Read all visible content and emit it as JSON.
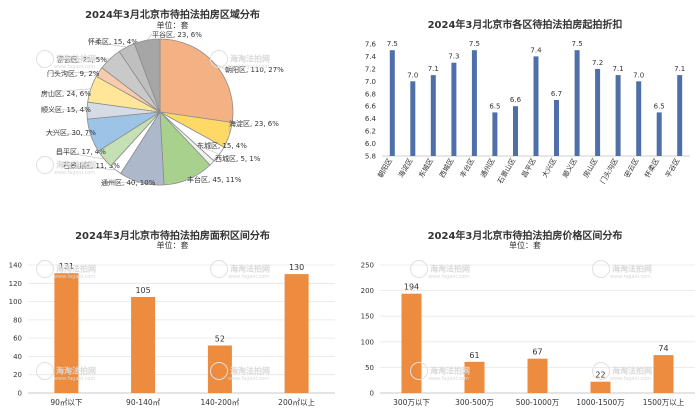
{
  "watermark": {
    "name": "海淘法拍网",
    "url": "www.fagaol.com"
  },
  "chart_data": [
    {
      "id": "district_pie",
      "type": "pie",
      "title": "2024年3月北京市待拍法拍房区域分布",
      "subtitle": "单位：套",
      "slices": [
        {
          "name": "朝阳区",
          "value": 110,
          "pct": "27%",
          "color": "#f4b183"
        },
        {
          "name": "海淀区",
          "value": 23,
          "pct": "6%",
          "color": "#ffd966"
        },
        {
          "name": "东城区",
          "value": 15,
          "pct": "4%",
          "color": "#ffffff"
        },
        {
          "name": "西城区",
          "value": 5,
          "pct": "1%",
          "color": "#f2f2f2"
        },
        {
          "name": "丰台区",
          "value": 45,
          "pct": "11%",
          "color": "#a9d18e"
        },
        {
          "name": "通州区",
          "value": 40,
          "pct": "10%",
          "color": "#adb9ca"
        },
        {
          "name": "石景山区",
          "value": 11,
          "pct": "3%",
          "color": "#ffffff"
        },
        {
          "name": "昌平区",
          "value": 17,
          "pct": "4%",
          "color": "#c5e0b4"
        },
        {
          "name": "大兴区",
          "value": 30,
          "pct": "7%",
          "color": "#9dc3e6"
        },
        {
          "name": "顺义区",
          "value": 15,
          "pct": "4%",
          "color": "#d6dce5"
        },
        {
          "name": "房山区",
          "value": 24,
          "pct": "6%",
          "color": "#ffe699"
        },
        {
          "name": "门头沟区",
          "value": 9,
          "pct": "2%",
          "color": "#f8cbad"
        },
        {
          "name": "密云区",
          "value": 21,
          "pct": "5%",
          "color": "#c9c9c9"
        },
        {
          "name": "怀柔区",
          "value": 15,
          "pct": "4%",
          "color": "#bfbfbf"
        },
        {
          "name": "平谷区",
          "value": 23,
          "pct": "6%",
          "color": "#a6a6a6"
        }
      ]
    },
    {
      "id": "discount_bar",
      "type": "bar",
      "title": "2024年3月北京市各区待拍法拍房起拍折扣",
      "categories": [
        "朝阳区",
        "海淀区",
        "东城区",
        "西城区",
        "丰台区",
        "通州区",
        "石景山区",
        "昌平区",
        "大兴区",
        "顺义区",
        "房山区",
        "门头沟区",
        "密云区",
        "怀柔区",
        "平谷区"
      ],
      "values": [
        7.5,
        7.0,
        7.1,
        7.3,
        7.5,
        6.5,
        6.6,
        7.4,
        6.7,
        7.5,
        7.2,
        7.1,
        7.0,
        6.5,
        7.1
      ],
      "ylim": [
        5.8,
        7.6
      ],
      "yticks": [
        "7.6",
        "7.4",
        "7.2",
        "7.0",
        "6.8",
        "6.6",
        "6.4",
        "6.2",
        "6.0",
        "5.8"
      ],
      "color": "#4f6fa8"
    },
    {
      "id": "area_bar",
      "type": "bar",
      "title": "2024年3月北京市待拍法拍房面积区间分布",
      "subtitle": "单位：套",
      "categories": [
        "90㎡以下",
        "90-140㎡",
        "140-200㎡",
        "200㎡以上"
      ],
      "values": [
        131,
        105,
        52,
        130
      ],
      "ylim": [
        0,
        140
      ],
      "yticks": [
        "140",
        "120",
        "100",
        "80",
        "60",
        "40",
        "20",
        "0"
      ],
      "color": "#ed8b3e"
    },
    {
      "id": "price_bar",
      "type": "bar",
      "title": "2024年3月北京市待拍法拍房价格区间分布",
      "subtitle": "单位：套",
      "categories": [
        "300万以下",
        "300-500万",
        "500-1000万",
        "1000-1500万",
        "1500万以上"
      ],
      "values": [
        194,
        61,
        67,
        22,
        74
      ],
      "ylim": [
        0,
        250
      ],
      "yticks": [
        "250",
        "200",
        "150",
        "100",
        "50",
        "0"
      ],
      "color": "#ed8b3e"
    }
  ]
}
